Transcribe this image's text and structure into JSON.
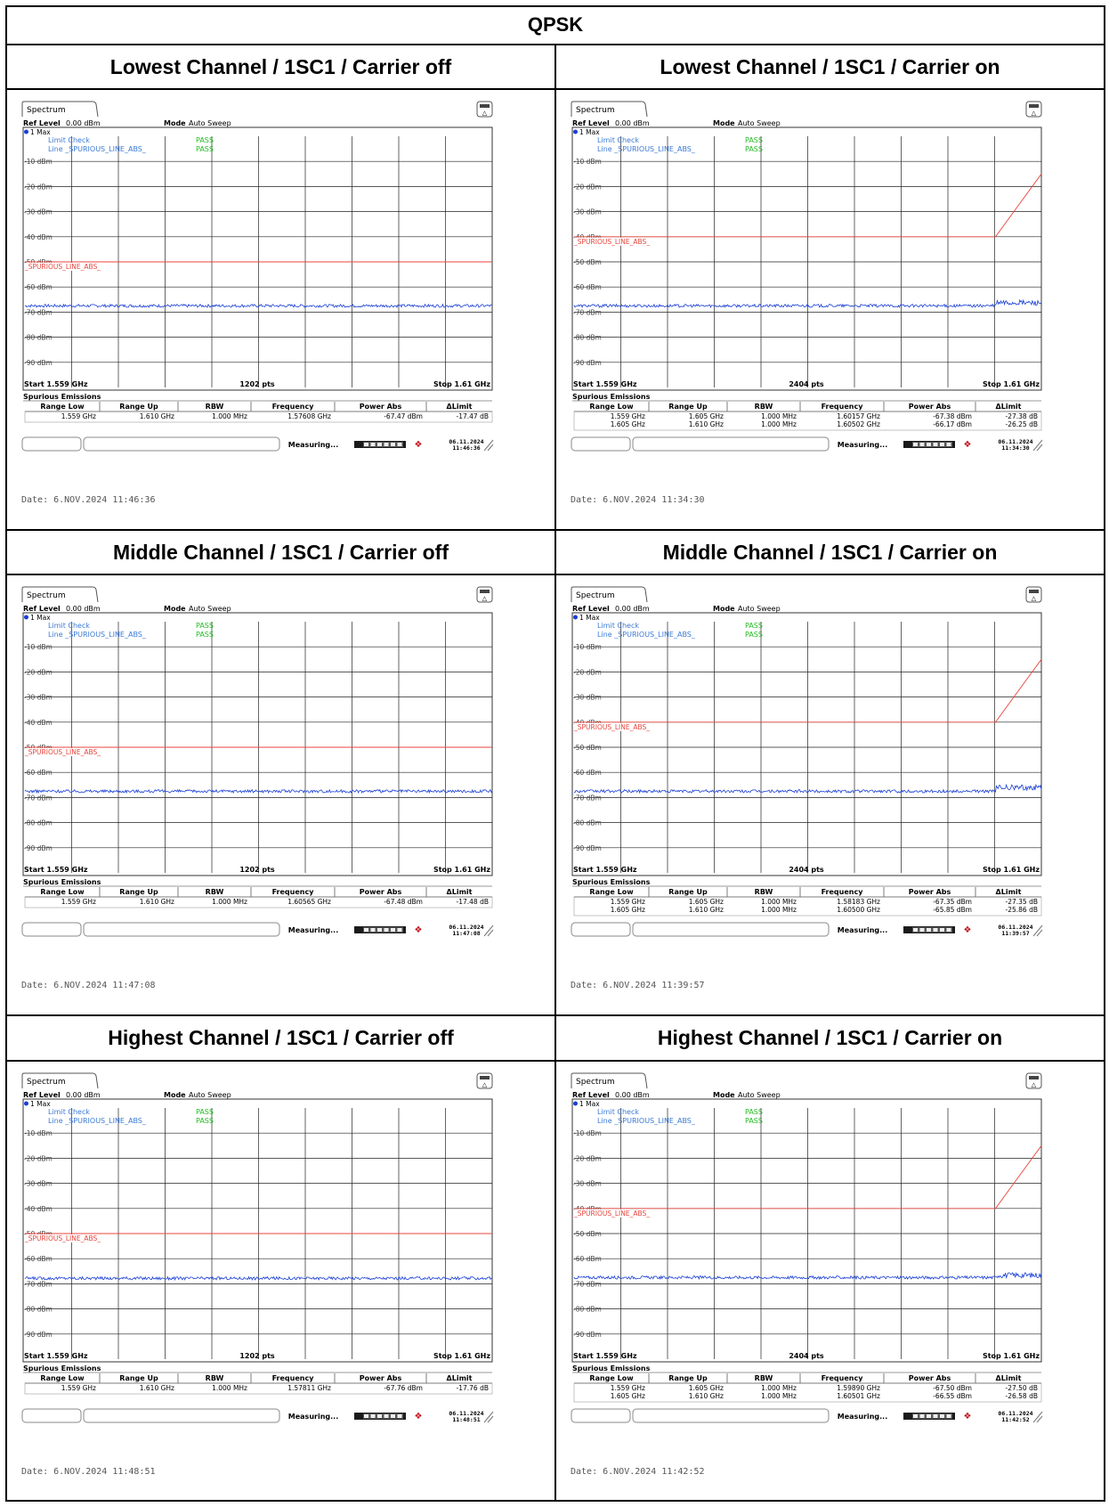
{
  "page_title": "QPSK",
  "colors": {
    "limit_line": "#e8453c",
    "trace": "#1a3fd6",
    "pass": "#22bb22",
    "label_blue": "#3a7ad6",
    "grid": "#222222",
    "led": "#1a1a1a",
    "logo": "#c0121a"
  },
  "common": {
    "tab": "Spectrum",
    "ref_level_label": "Ref Level",
    "ref_level_value": "0.00 dBm",
    "mode_label": "Mode",
    "mode_value": "Auto Sweep",
    "trace_label": "1 Max",
    "limit_check_label": "Limit Check",
    "limit_line_label": "Line _SPURIOUS_LINE_ABS_",
    "pass": "PASS",
    "line_name": "_SPURIOUS_LINE_ABS_",
    "start": "Start 1.559 GHz",
    "stop": "Stop 1.61 GHz",
    "table_title": "Spurious Emissions",
    "columns": [
      "Range Low",
      "Range Up",
      "RBW",
      "Frequency",
      "Power Abs",
      "ΔLimit"
    ],
    "status": "Measuring...",
    "date_prefix": "Date: 6.NOV.2024",
    "clock_date": "06.11.2024",
    "y_tick_labels": [
      "-10 dBm",
      "-20 dBm",
      "-30 dBm",
      "-40 dBm",
      "-50 dBm",
      "-60 dBm",
      "-70 dBm",
      "-80 dBm",
      "-90 dBm"
    ]
  },
  "panels": [
    {
      "title": "Lowest Channel / 1SC1 / Carrier off",
      "carrier": false,
      "pts": "1202 pts",
      "time": "11:46:36",
      "limit_dbm": -50,
      "rows": [
        [
          "1.559 GHz",
          "1.610 GHz",
          "1.000 MHz",
          "1.57608 GHz",
          "-67.47 dBm",
          "-17.47 dB"
        ]
      ]
    },
    {
      "title": "Lowest Channel / 1SC1 / Carrier on",
      "carrier": true,
      "pts": "2404 pts",
      "time": "11:34:30",
      "limit_dbm": -40,
      "rows": [
        [
          "1.559 GHz",
          "1.605 GHz",
          "1.000 MHz",
          "1.60157 GHz",
          "-67.38 dBm",
          "-27.38 dB"
        ],
        [
          "1.605 GHz",
          "1.610 GHz",
          "1.000 MHz",
          "1.60502 GHz",
          "-66.17 dBm",
          "-26.25 dB"
        ]
      ]
    },
    {
      "title": "Middle Channel / 1SC1 / Carrier off",
      "carrier": false,
      "pts": "1202 pts",
      "time": "11:47:08",
      "limit_dbm": -50,
      "rows": [
        [
          "1.559 GHz",
          "1.610 GHz",
          "1.000 MHz",
          "1.60565 GHz",
          "-67.48 dBm",
          "-17.48 dB"
        ]
      ]
    },
    {
      "title": "Middle Channel / 1SC1 / Carrier on",
      "carrier": true,
      "pts": "2404 pts",
      "time": "11:39:57",
      "limit_dbm": -40,
      "rows": [
        [
          "1.559 GHz",
          "1.605 GHz",
          "1.000 MHz",
          "1.58183 GHz",
          "-67.35 dBm",
          "-27.35 dB"
        ],
        [
          "1.605 GHz",
          "1.610 GHz",
          "1.000 MHz",
          "1.60500 GHz",
          "-65.85 dBm",
          "-25.86 dB"
        ]
      ]
    },
    {
      "title": "Highest Channel / 1SC1 / Carrier off",
      "carrier": false,
      "pts": "1202 pts",
      "time": "11:48:51",
      "limit_dbm": -50,
      "rows": [
        [
          "1.559 GHz",
          "1.610 GHz",
          "1.000 MHz",
          "1.57811 GHz",
          "-67.76 dBm",
          "-17.76 dB"
        ]
      ]
    },
    {
      "title": "Highest Channel / 1SC1 / Carrier on",
      "carrier": true,
      "pts": "2404 pts",
      "time": "11:42:52",
      "limit_dbm": -40,
      "rows": [
        [
          "1.559 GHz",
          "1.605 GHz",
          "1.000 MHz",
          "1.59890 GHz",
          "-67.50 dBm",
          "-27.50 dB"
        ],
        [
          "1.605 GHz",
          "1.610 GHz",
          "1.000 MHz",
          "1.60501 GHz",
          "-66.55 dBm",
          "-26.58 dB"
        ]
      ]
    }
  ],
  "chart_data": [
    {
      "type": "line",
      "title": "Lowest Channel / 1SC1 / Carrier off",
      "xlim": [
        1.559,
        1.61
      ],
      "ylim": [
        -100,
        0
      ],
      "xunit": "GHz",
      "yunit": "dBm",
      "series": [
        {
          "name": "1 Max",
          "x": [
            1.559,
            1.61
          ],
          "values": [
            -67.5,
            -67.5
          ]
        },
        {
          "name": "_SPURIOUS_LINE_ABS_",
          "x": [
            1.559,
            1.61
          ],
          "values": [
            -50,
            -50
          ]
        }
      ]
    },
    {
      "type": "line",
      "title": "Lowest Channel / 1SC1 / Carrier on",
      "xlim": [
        1.559,
        1.61
      ],
      "ylim": [
        -100,
        0
      ],
      "xunit": "GHz",
      "yunit": "dBm",
      "series": [
        {
          "name": "1 Max",
          "x": [
            1.559,
            1.605,
            1.605,
            1.61
          ],
          "values": [
            -67.5,
            -67.5,
            -66.3,
            -66.3
          ]
        },
        {
          "name": "_SPURIOUS_LINE_ABS_",
          "x": [
            1.559,
            1.605,
            1.61
          ],
          "values": [
            -40,
            -40,
            -15
          ]
        }
      ]
    },
    {
      "type": "line",
      "title": "Middle Channel / 1SC1 / Carrier off",
      "xlim": [
        1.559,
        1.61
      ],
      "ylim": [
        -100,
        0
      ],
      "xunit": "GHz",
      "yunit": "dBm",
      "series": [
        {
          "name": "1 Max",
          "x": [
            1.559,
            1.61
          ],
          "values": [
            -67.5,
            -67.5
          ]
        },
        {
          "name": "_SPURIOUS_LINE_ABS_",
          "x": [
            1.559,
            1.61
          ],
          "values": [
            -50,
            -50
          ]
        }
      ]
    },
    {
      "type": "line",
      "title": "Middle Channel / 1SC1 / Carrier on",
      "xlim": [
        1.559,
        1.61
      ],
      "ylim": [
        -100,
        0
      ],
      "xunit": "GHz",
      "yunit": "dBm",
      "series": [
        {
          "name": "1 Max",
          "x": [
            1.559,
            1.605,
            1.605,
            1.61
          ],
          "values": [
            -67.5,
            -67.5,
            -66.0,
            -66.0
          ]
        },
        {
          "name": "_SPURIOUS_LINE_ABS_",
          "x": [
            1.559,
            1.605,
            1.61
          ],
          "values": [
            -40,
            -40,
            -15
          ]
        }
      ]
    },
    {
      "type": "line",
      "title": "Highest Channel / 1SC1 / Carrier off",
      "xlim": [
        1.559,
        1.61
      ],
      "ylim": [
        -100,
        0
      ],
      "xunit": "GHz",
      "yunit": "dBm",
      "series": [
        {
          "name": "1 Max",
          "x": [
            1.559,
            1.61
          ],
          "values": [
            -67.8,
            -67.8
          ]
        },
        {
          "name": "_SPURIOUS_LINE_ABS_",
          "x": [
            1.559,
            1.61
          ],
          "values": [
            -50,
            -50
          ]
        }
      ]
    },
    {
      "type": "line",
      "title": "Highest Channel / 1SC1 / Carrier on",
      "xlim": [
        1.559,
        1.61
      ],
      "ylim": [
        -100,
        0
      ],
      "xunit": "GHz",
      "yunit": "dBm",
      "series": [
        {
          "name": "1 Max",
          "x": [
            1.559,
            1.605,
            1.605,
            1.61
          ],
          "values": [
            -67.5,
            -67.5,
            -66.6,
            -66.6
          ]
        },
        {
          "name": "_SPURIOUS_LINE_ABS_",
          "x": [
            1.559,
            1.605,
            1.61
          ],
          "values": [
            -40,
            -40,
            -15
          ]
        }
      ]
    }
  ]
}
